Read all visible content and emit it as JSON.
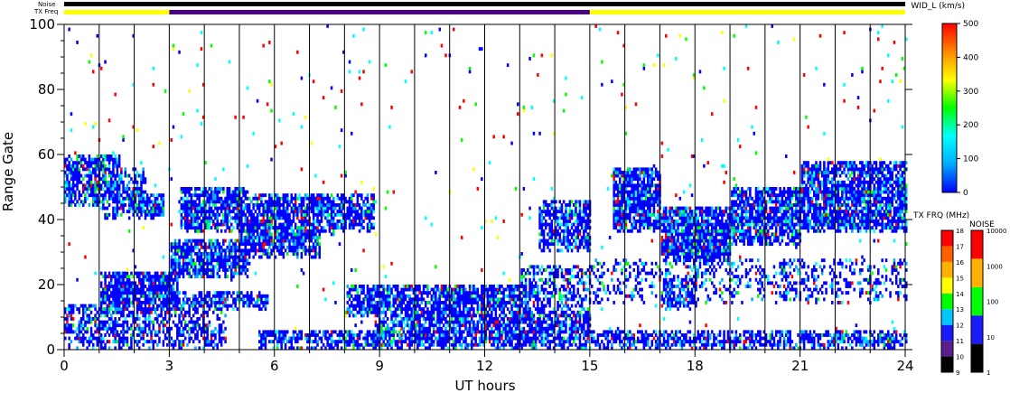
{
  "chart_data": {
    "type": "heatmap",
    "xlabel": "UT hours",
    "ylabel": "Range Gate",
    "xlim": [
      0,
      24
    ],
    "ylim": [
      0,
      100
    ],
    "x_ticks": [
      0,
      3,
      6,
      9,
      12,
      15,
      18,
      21,
      24
    ],
    "y_ticks": [
      0,
      20,
      40,
      60,
      80,
      100
    ],
    "grid": "vertical lines every 1 UT hour",
    "top_bars": {
      "noise_label": "Noise",
      "txfreq_label": "TX Freq",
      "noise_color": "#000000",
      "txfreq_segments": [
        {
          "start": 0,
          "end": 3,
          "color": "#ffff00"
        },
        {
          "start": 3,
          "end": 15,
          "color": "#4b0082"
        },
        {
          "start": 15,
          "end": 24,
          "color": "#ffff00"
        }
      ]
    },
    "colorbars": [
      {
        "name": "WID_L (km/s)",
        "type": "continuous",
        "range": [
          0,
          500
        ],
        "tick_labels": [
          "0",
          "100",
          "200",
          "300",
          "400",
          "500"
        ],
        "colors": [
          "#0000ff",
          "#00aaff",
          "#00ffff",
          "#00ff00",
          "#ffff00",
          "#ff8800",
          "#ff0000"
        ]
      },
      {
        "name": "TX FRQ (MHz)",
        "type": "discrete",
        "tick_labels": [
          "9",
          "10",
          "11",
          "12",
          "13",
          "14",
          "15",
          "16",
          "17",
          "18"
        ],
        "colors": [
          "#000000",
          "#5a1f8a",
          "#1a1aff",
          "#00c8ff",
          "#00ff00",
          "#ffff00",
          "#ffb000",
          "#ff6000",
          "#ff0000"
        ]
      },
      {
        "name": "NOISE",
        "type": "discrete",
        "tick_labels": [
          "1",
          "10",
          "100",
          "1000",
          "10000"
        ],
        "colors": [
          "#000000",
          "#1a1aff",
          "#00ff00",
          "#ffb000",
          "#ff0000"
        ]
      }
    ],
    "bands": [
      {
        "t0": 0.0,
        "t1": 1.6,
        "g0": 44,
        "g1": 60,
        "density": 0.8
      },
      {
        "t0": 1.0,
        "t1": 2.3,
        "g0": 40,
        "g1": 56,
        "density": 0.55
      },
      {
        "t0": 1.8,
        "t1": 2.8,
        "g0": 40,
        "g1": 48,
        "density": 0.8
      },
      {
        "t0": 3.3,
        "t1": 5.2,
        "g0": 36,
        "g1": 50,
        "density": 0.8
      },
      {
        "t0": 5.0,
        "t1": 8.8,
        "g0": 36,
        "g1": 48,
        "density": 0.75
      },
      {
        "t0": 3.0,
        "t1": 5.2,
        "g0": 22,
        "g1": 34,
        "density": 0.85
      },
      {
        "t0": 5.0,
        "t1": 7.3,
        "g0": 28,
        "g1": 40,
        "density": 0.8
      },
      {
        "t0": 6.5,
        "t1": 7.7,
        "g0": 35,
        "g1": 45,
        "density": 0.6
      },
      {
        "t0": 1.0,
        "t1": 3.2,
        "g0": 10,
        "g1": 24,
        "density": 0.85
      },
      {
        "t0": 3.0,
        "t1": 5.8,
        "g0": 12,
        "g1": 18,
        "density": 0.7
      },
      {
        "t0": 8.0,
        "t1": 13.5,
        "g0": 10,
        "g1": 20,
        "density": 0.8
      },
      {
        "t0": 0.0,
        "t1": 4.6,
        "g0": 0,
        "g1": 14,
        "density": 0.55
      },
      {
        "t0": 5.5,
        "t1": 24.0,
        "g0": 0,
        "g1": 6,
        "density": 0.7
      },
      {
        "t0": 8.8,
        "t1": 15.0,
        "g0": 0,
        "g1": 12,
        "density": 0.75
      },
      {
        "t0": 13.5,
        "t1": 15.0,
        "g0": 30,
        "g1": 46,
        "density": 0.7
      },
      {
        "t0": 13.0,
        "t1": 15.0,
        "g0": 10,
        "g1": 26,
        "density": 0.5
      },
      {
        "t0": 15.6,
        "t1": 17.0,
        "g0": 36,
        "g1": 56,
        "density": 0.85
      },
      {
        "t0": 17.0,
        "t1": 19.0,
        "g0": 26,
        "g1": 44,
        "density": 0.85
      },
      {
        "t0": 19.0,
        "t1": 21.0,
        "g0": 32,
        "g1": 50,
        "density": 0.8
      },
      {
        "t0": 21.0,
        "t1": 24.0,
        "g0": 36,
        "g1": 58,
        "density": 0.8
      },
      {
        "t0": 15.0,
        "t1": 24.0,
        "g0": 14,
        "g1": 28,
        "density": 0.3
      },
      {
        "t0": 17.0,
        "t1": 18.0,
        "g0": 12,
        "g1": 22,
        "density": 0.7
      }
    ],
    "scatter_density": 0.012
  }
}
